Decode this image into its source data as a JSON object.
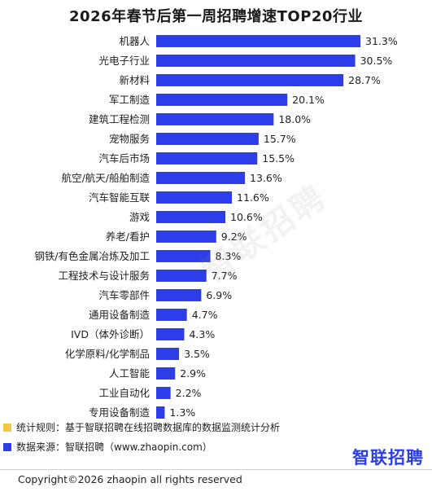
{
  "title": "2026年春节后第一周招聘增速TOP20行业",
  "watermark": "智联招聘",
  "notes": {
    "rule": "统计规则：基于智联招聘在线招聘数据库的数据监测统计分析",
    "source": "数据来源：智联招聘（www.zhaopin.com）"
  },
  "brand": "智联招聘",
  "copyright": "Copyright©2026 zhaopin all rights reserved",
  "colors": {
    "bar": "#2b3ee8",
    "rule_marker": "#f5c544",
    "source_marker": "#2b3ee8",
    "brand": "#2b3ee8"
  },
  "chart_data": {
    "type": "bar",
    "orientation": "horizontal",
    "title": "2026年春节后第一周招聘增速TOP20行业",
    "categories": [
      "机器人",
      "光电子行业",
      "新材料",
      "军工制造",
      "建筑工程检测",
      "宠物服务",
      "汽车后市场",
      "航空/航天/船舶制造",
      "汽车智能互联",
      "游戏",
      "养老/看护",
      "钢铁/有色金属冶炼及加工",
      "工程技术与设计服务",
      "汽车零部件",
      "通用设备制造",
      "IVD（体外诊断）",
      "化学原料/化学制品",
      "人工智能",
      "工业自动化",
      "专用设备制造"
    ],
    "values": [
      31.3,
      30.5,
      28.7,
      20.1,
      18.0,
      15.7,
      15.5,
      13.6,
      11.6,
      10.6,
      9.2,
      8.3,
      7.7,
      6.9,
      4.7,
      4.3,
      3.5,
      2.9,
      2.2,
      1.3
    ],
    "labels": [
      "31.3%",
      "30.5%",
      "28.7%",
      "20.1%",
      "18.0%",
      "15.7%",
      "15.5%",
      "13.6%",
      "11.6%",
      "10.6%",
      "9.2%",
      "8.3%",
      "7.7%",
      "6.9%",
      "4.7%",
      "4.3%",
      "3.5%",
      "2.9%",
      "2.2%",
      "1.3%"
    ],
    "xlim": [
      0,
      31.3
    ],
    "grid": false,
    "legend": "none"
  }
}
